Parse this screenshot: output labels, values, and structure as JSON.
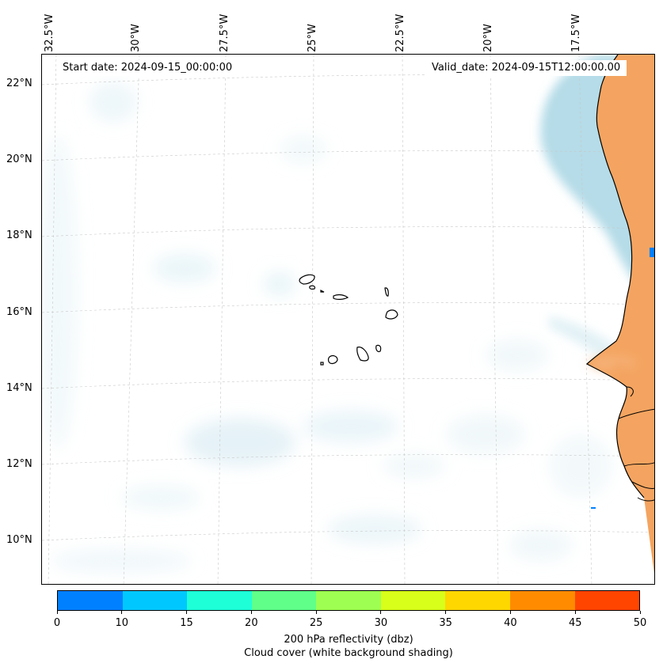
{
  "map": {
    "title_start": "Start date: 2024-09-15_00:00:00",
    "title_valid": "Valid_date: 2024-09-15T12:00:00.00",
    "lon_labels": [
      "32.5°W",
      "30°W",
      "27.5°W",
      "25°W",
      "22.5°W",
      "20°W",
      "17.5°W"
    ],
    "lat_labels": [
      "22°N",
      "20°N",
      "18°N",
      "16°N",
      "14°N",
      "12°N",
      "10°N"
    ],
    "land_color": "#f4a460",
    "cloud_color": "#add8e6"
  },
  "colorbar": {
    "label_line1": "200 hPa reflectivity (dbz)",
    "label_line2": "Cloud cover (white background shading)",
    "ticks": [
      "0",
      "10",
      "15",
      "20",
      "25",
      "30",
      "35",
      "40",
      "45",
      "50"
    ],
    "colors": [
      "#0080ff",
      "#00c8ff",
      "#1effd8",
      "#60ff8a",
      "#9eff52",
      "#d8ff1a",
      "#ffd700",
      "#ff8c00",
      "#ff4500"
    ]
  }
}
